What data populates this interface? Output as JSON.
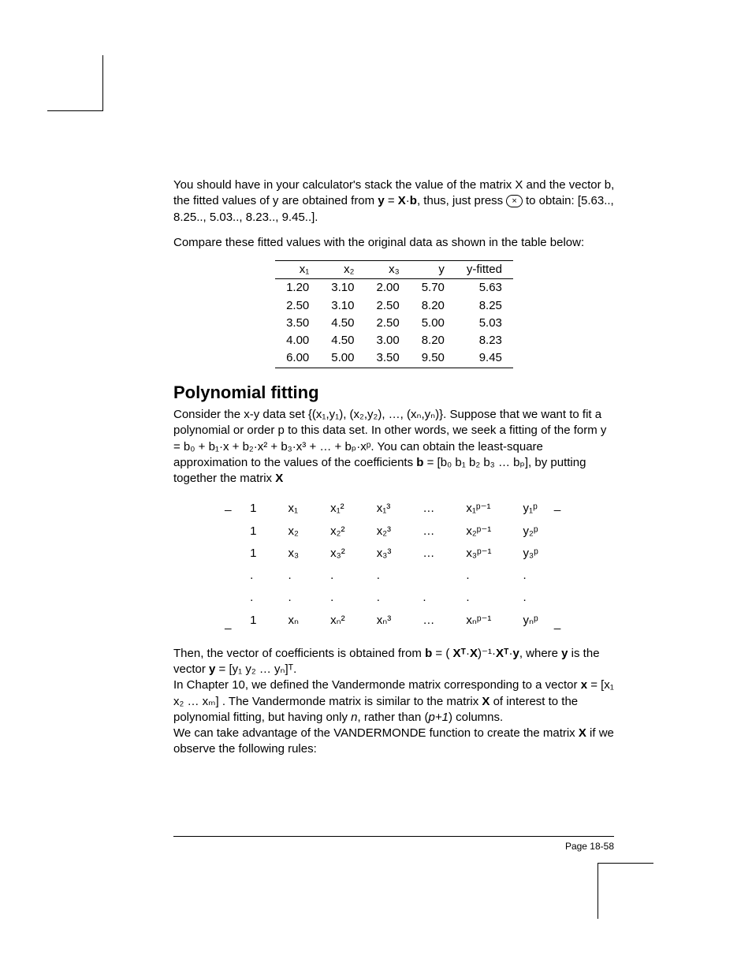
{
  "page_label": "Page 18-58",
  "intro": {
    "p1_a": "You should have in your calculator's stack the value of the matrix X and the vector b, the fitted values of y are obtained from ",
    "p1_formula": "y = X·b",
    "p1_b": ", thus, just press ",
    "key_glyph": "×",
    "p1_c": " to obtain: [5.63.., 8.25.., 5.03.., 8.23.., 9.45..].",
    "p2": "Compare these fitted values with the original data as shown in the table below:"
  },
  "table": {
    "columns": [
      "x₁",
      "x₂",
      "x₃",
      "y",
      "y-fitted"
    ],
    "rows": [
      [
        "1.20",
        "3.10",
        "2.00",
        "5.70",
        "5.63"
      ],
      [
        "2.50",
        "3.10",
        "2.50",
        "8.20",
        "8.25"
      ],
      [
        "3.50",
        "4.50",
        "2.50",
        "5.00",
        "5.03"
      ],
      [
        "4.00",
        "4.50",
        "3.00",
        "8.20",
        "8.23"
      ],
      [
        "6.00",
        "5.00",
        "3.50",
        "9.50",
        "9.45"
      ]
    ]
  },
  "heading": "Polynomial fitting",
  "poly": {
    "p1": "Consider the x-y data set {(x₁,y₁), (x₂,y₂), …, (xₙ,yₙ)}.   Suppose that we want to fit a polynomial or order p to this data set.  In other words, we seek a fitting of the form y = b₀ + b₁·x + b₂·x² + b₃·x³ + … + bₚ·xᵖ.   You can obtain the least-square approximation to the values of the coefficients  ",
    "p1_bold_b": "b",
    "p1_tail": " = [b₀   b₁  b₂  b₃ … bₚ], by putting together the matrix ",
    "p1_bold_x": "X"
  },
  "matrix": {
    "cols": 7,
    "rows": [
      [
        "1",
        "x₁",
        "x₁²",
        "x₁³",
        "…",
        "x₁ᵖ⁻¹",
        "y₁ᵖ"
      ],
      [
        "1",
        "x₂",
        "x₂²",
        "x₂³",
        "…",
        "x₂ᵖ⁻¹",
        "y₂ᵖ"
      ],
      [
        "1",
        "x₃",
        "x₃²",
        "x₃³",
        "…",
        "x₃ᵖ⁻¹",
        "y₃ᵖ"
      ],
      [
        ".",
        ".",
        ".",
        ".",
        "",
        ".",
        "."
      ],
      [
        ".",
        ".",
        ".",
        ".",
        ".",
        ".",
        "."
      ],
      [
        "1",
        "xₙ",
        "xₙ²",
        "xₙ³",
        "…",
        "xₙᵖ⁻¹",
        "yₙᵖ"
      ]
    ]
  },
  "after": {
    "p1_a": "Then, the vector of coefficients is obtained from ",
    "p1_bold_b": "b",
    "p1_mid": " = (",
    "p1_Xt": "Xᵀ",
    "p1_dot1": "·",
    "p1_X": "X",
    "p1_inv": ")⁻¹·",
    "p1_Xt2": "Xᵀ",
    "p1_dot2": "·",
    "p1_y": "y",
    "p1_where": ",  where ",
    "p1_y2": "y",
    "p1_tail": " is the vector ",
    "p1_yvec": "y",
    "p1_yvec_tail": " = [y₁ y₂ … yₙ]ᵀ.",
    "p2_a": "In Chapter 10, we defined the Vandermonde matrix corresponding to a vector ",
    "p2_x": "x",
    "p2_xvec": " = [x₁ x₂ … xₘ] .  The Vandermonde matrix is similar to the matrix ",
    "p2_X": "X",
    "p2_tail": " of interest to the polynomial fitting, but having only ",
    "p2_n": "n",
    "p2_rather": ", rather than (",
    "p2_p1": "p+1",
    "p2_cols": ") columns.",
    "p3_a": "We can take advantage of the VANDERMONDE function to create the matrix ",
    "p3_X": "X",
    "p3_tail": " if we observe the following rules:"
  }
}
